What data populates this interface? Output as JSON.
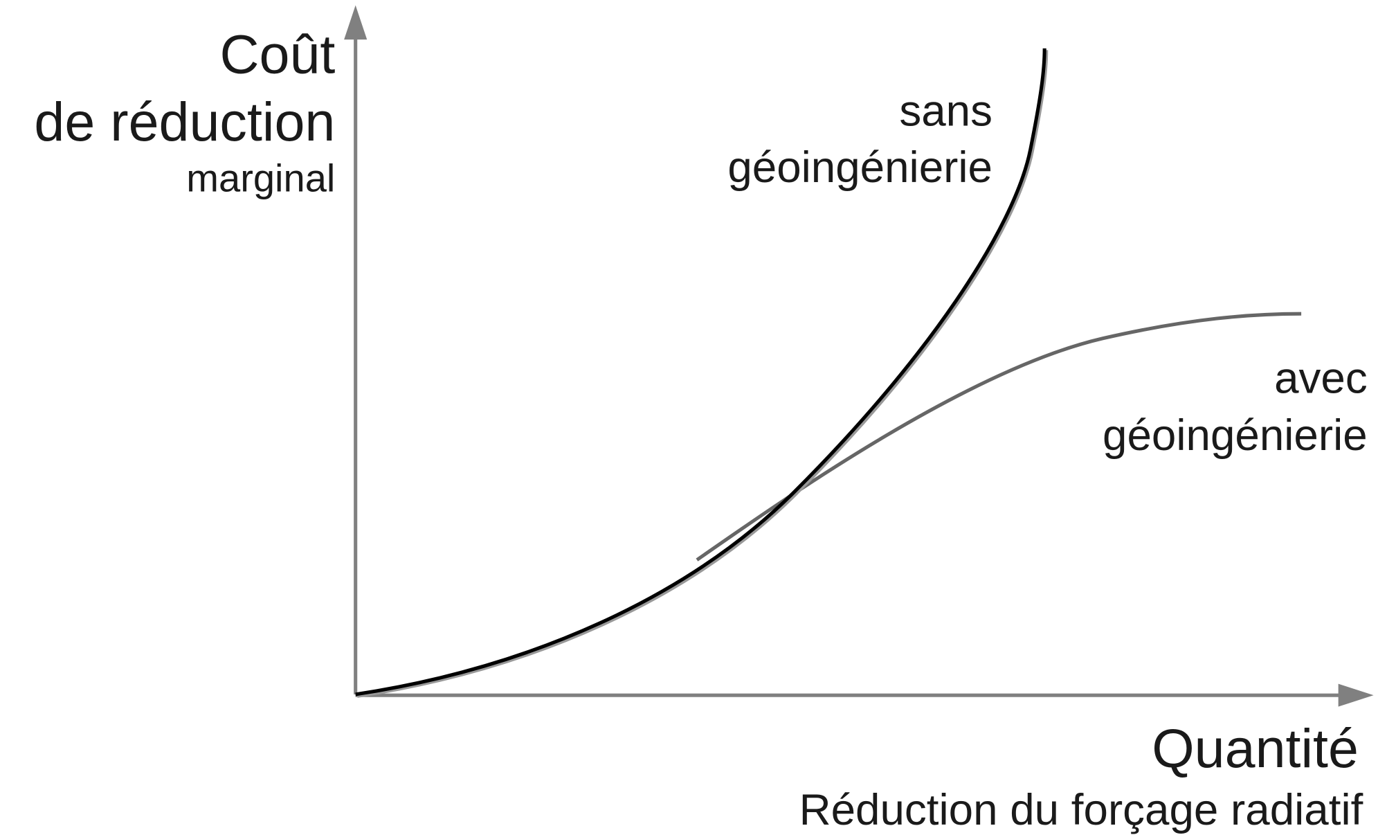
{
  "y_axis": {
    "title": "Coût",
    "line2": "de réduction",
    "line3": "marginal"
  },
  "x_axis": {
    "title": "Quantité",
    "subtitle": "Réduction du forçage radiatif"
  },
  "curves": [
    {
      "label_line1": "sans",
      "label_line2": "géoingénierie"
    },
    {
      "label_line1": "avec",
      "label_line2": "géoingénierie"
    }
  ]
}
